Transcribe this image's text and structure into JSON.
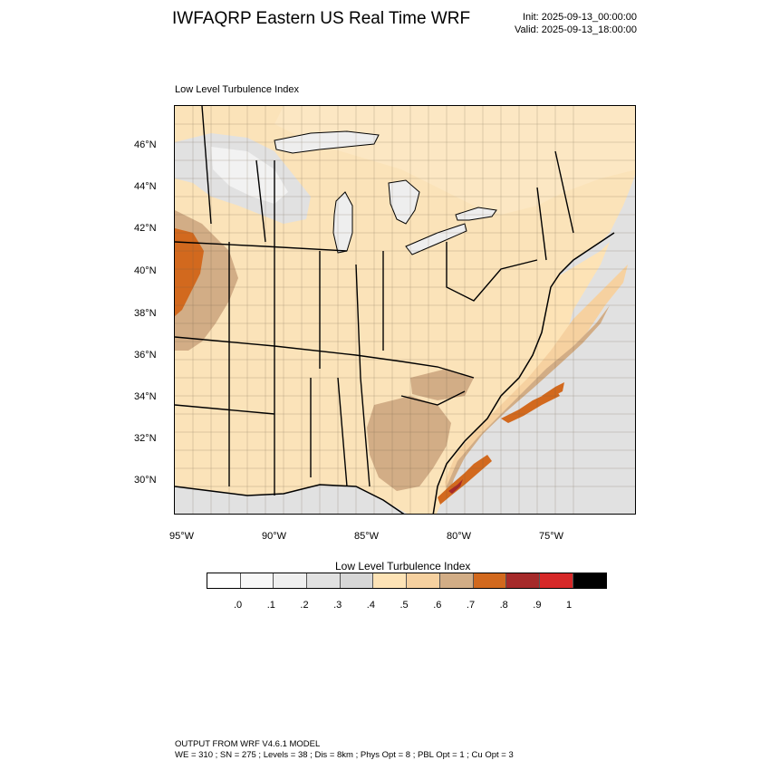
{
  "header": {
    "title": "IWFAQRP Eastern US Real Time WRF",
    "init": "Init: 2025-09-13_00:00:00",
    "valid": "Valid: 2025-09-13_18:00:00"
  },
  "map": {
    "subtitle": "Low Level Turbulence Index",
    "lat_labels": [
      "46°N",
      "44°N",
      "42°N",
      "40°N",
      "38°N",
      "36°N",
      "34°N",
      "32°N",
      "30°N"
    ],
    "lon_labels": [
      "95°W",
      "90°W",
      "85°W",
      "80°W",
      "75°W"
    ],
    "colors": {
      "land_base": "#fbe3b9",
      "land_mid": "#f4d3a2",
      "land_brown": "#d3b08c",
      "water": "#eeeeee",
      "ocean_gray": "#e1e1e1",
      "orange": "#d2691e",
      "dark_red": "#a52a2a",
      "border": "#000000",
      "county": "#444444"
    }
  },
  "colorbar": {
    "title": "Low Level Turbulence Index",
    "colors": [
      "#ffffff",
      "#f7f7f7",
      "#efefef",
      "#e1e1e1",
      "#d7d7d7",
      "#fde3b6",
      "#f6d1a0",
      "#d2ad86",
      "#d2691e",
      "#a52a2a",
      "#d62828",
      "#000000"
    ],
    "labels": [
      ".0",
      ".1",
      ".2",
      ".3",
      ".4",
      ".5",
      ".6",
      ".7",
      ".8",
      ".9",
      "1"
    ]
  },
  "footer": {
    "line1": "OUTPUT FROM WRF V4.6.1 MODEL",
    "line2": "WE = 310 ; SN = 275 ; Levels = 38 ; Dis = 8km ; Phys Opt = 8 ; PBL Opt = 1 ; Cu Opt = 3"
  }
}
